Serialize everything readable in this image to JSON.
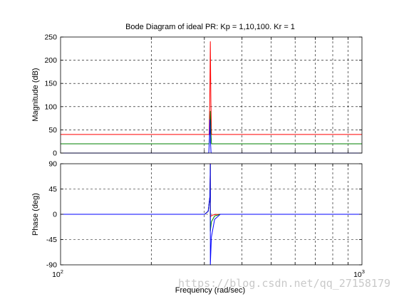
{
  "chart_data": {
    "type": "line",
    "title": "Bode Diagram of ideal PR: Kp = 1,10,100. Kr = 1",
    "xlabel": "Frequency  (rad/sec)",
    "xscale": "log",
    "xlim": [
      100,
      1000
    ],
    "resonance_frequency": 314,
    "x_ticks": [
      {
        "base": "10",
        "exp": "2",
        "value": 100
      },
      {
        "base": "10",
        "exp": "3",
        "value": 1000
      }
    ],
    "grid": true,
    "colors": {
      "red": "#ff0000",
      "green": "#008000",
      "blue": "#0000ff",
      "axes": "#000000",
      "grid": "#000000"
    },
    "panels": [
      {
        "id": "magnitude",
        "ylabel": "Magnitude (dB)",
        "ylim": [
          0,
          250
        ],
        "ytick_values": [
          0,
          50,
          100,
          150,
          200,
          250
        ],
        "yticks": [
          "0",
          "50",
          "100",
          "150",
          "200",
          "250"
        ],
        "series": [
          {
            "color": "#ff0000",
            "baseline": 40,
            "peak": 240,
            "peak_freq": 314
          },
          {
            "color": "#008000",
            "baseline": 20,
            "peak": 90,
            "peak_freq": 314
          },
          {
            "color": "#0000ff",
            "baseline": 0,
            "peak": 72,
            "peak_freq": 313
          }
        ]
      },
      {
        "id": "phase",
        "ylabel": "Phase (deg)",
        "ylim": [
          -90,
          90
        ],
        "ytick_values": [
          -90,
          -45,
          0,
          45,
          90
        ],
        "yticks": [
          "-90",
          "-45",
          "0",
          "45",
          "90"
        ],
        "series": [
          {
            "color": "#ff0000",
            "baseline": 0,
            "max": 90,
            "min": -5
          },
          {
            "color": "#008000",
            "baseline": 0,
            "max": 88,
            "min": -30
          },
          {
            "color": "#0000ff",
            "baseline": 0,
            "max": 90,
            "min": -90
          }
        ]
      }
    ]
  },
  "watermark": "https://blog.csdn.net/qq_27158179"
}
